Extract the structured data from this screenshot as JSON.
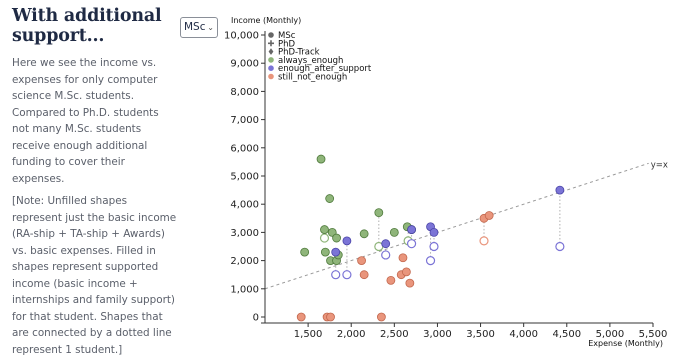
{
  "sidebar": {
    "heading": "With additional support...",
    "paragraph1": "Here we see the income vs. expenses for only computer science M.Sc. students. Compared to Ph.D. students not many M.Sc. students receive enough additional funding to cover their expenses.",
    "paragraph2": "[Note: Unfilled shapes represent just the basic income (RA-ship + TA-ship + Awards) vs. basic expenses. Filled in shapes represent supported income (basic income + internships and family support) for that student. Shapes that are connected by a dotted line represent 1 student.]"
  },
  "filter": {
    "selected": "MSc",
    "icon": "chevron-down-icon"
  },
  "chart_data": {
    "type": "scatter",
    "xlabel": "Expense (Monthly)",
    "ylabel": "Income (Monthly)",
    "xlim": [
      1000,
      5500
    ],
    "ylim": [
      0,
      10000
    ],
    "x_ticks": [
      1500,
      2000,
      2500,
      3000,
      3500,
      4000,
      4500,
      5000,
      5500
    ],
    "y_ticks": [
      0,
      1000,
      2000,
      3000,
      4000,
      5000,
      6000,
      7000,
      8000,
      9000,
      10000
    ],
    "x_tick_labels": [
      "1,500",
      "2,000",
      "2,500",
      "3,000",
      "3,500",
      "4,000",
      "4,500",
      "5,000",
      "5,500"
    ],
    "y_tick_labels": [
      "0",
      "1,000",
      "2,000",
      "3,000",
      "4,000",
      "5,000",
      "6,000",
      "7,000",
      "8,000",
      "9,000",
      "10,000"
    ],
    "reference_line": {
      "label": "y=x"
    },
    "legend": {
      "placement": "top-left",
      "shapes": [
        {
          "label": "MSc",
          "icon": "circle-icon"
        },
        {
          "label": "PhD",
          "icon": "plus-icon"
        },
        {
          "label": "PhD-Track",
          "icon": "diamond-icon"
        }
      ],
      "categories": [
        {
          "label": "always_enough",
          "color": "#8fb57a"
        },
        {
          "label": "enough_after_support",
          "color": "#7b74d6"
        },
        {
          "label": "still_not_enough",
          "color": "#e9957c"
        }
      ]
    },
    "colors": {
      "always_enough": "#8fb57a",
      "enough_after_support": "#7b74d6",
      "still_not_enough": "#e9957c",
      "grid": "#e6e6e6",
      "axis": "#333333",
      "connector": "#b0b0b0"
    },
    "points": [
      {
        "category": "always_enough",
        "x": 1650,
        "y": 5600
      },
      {
        "category": "always_enough",
        "x": 1750,
        "y": 4200
      },
      {
        "category": "always_enough",
        "x": 1690,
        "y": 3100
      },
      {
        "category": "always_enough",
        "x": 1780,
        "y": 3000
      },
      {
        "category": "always_enough",
        "x": 1830,
        "y": 2800
      },
      {
        "category": "always_enough",
        "x": 1460,
        "y": 2300
      },
      {
        "category": "always_enough",
        "x": 1700,
        "y": 2300
      },
      {
        "category": "always_enough",
        "x": 1760,
        "y": 2000
      },
      {
        "category": "always_enough",
        "x": 1830,
        "y": 2000
      },
      {
        "category": "always_enough",
        "x": 1850,
        "y": 2200
      },
      {
        "category": "always_enough",
        "x": 2150,
        "y": 2950
      },
      {
        "category": "always_enough",
        "x": 2320,
        "y": 3700
      },
      {
        "category": "always_enough",
        "x": 2500,
        "y": 3000
      },
      {
        "category": "always_enough",
        "x": 2650,
        "y": 3200
      },
      {
        "category": "always_enough",
        "x": 2700,
        "y": 3100
      },
      {
        "category": "enough_after_support",
        "x": 1950,
        "y": 2700
      },
      {
        "category": "enough_after_support",
        "x": 1820,
        "y": 2300
      },
      {
        "category": "enough_after_support",
        "x": 2400,
        "y": 2600
      },
      {
        "category": "enough_after_support",
        "x": 2700,
        "y": 3100
      },
      {
        "category": "enough_after_support",
        "x": 2920,
        "y": 3200
      },
      {
        "category": "enough_after_support",
        "x": 2960,
        "y": 3000
      },
      {
        "category": "enough_after_support",
        "x": 4420,
        "y": 4500
      },
      {
        "category": "still_not_enough",
        "x": 1420,
        "y": 0
      },
      {
        "category": "still_not_enough",
        "x": 1720,
        "y": 0
      },
      {
        "category": "still_not_enough",
        "x": 1760,
        "y": 0
      },
      {
        "category": "still_not_enough",
        "x": 2350,
        "y": 0
      },
      {
        "category": "still_not_enough",
        "x": 2120,
        "y": 2000
      },
      {
        "category": "still_not_enough",
        "x": 2150,
        "y": 1500
      },
      {
        "category": "still_not_enough",
        "x": 2460,
        "y": 1300
      },
      {
        "category": "still_not_enough",
        "x": 2580,
        "y": 1500
      },
      {
        "category": "still_not_enough",
        "x": 2640,
        "y": 1600
      },
      {
        "category": "still_not_enough",
        "x": 2600,
        "y": 2100
      },
      {
        "category": "still_not_enough",
        "x": 2680,
        "y": 1200
      },
      {
        "category": "still_not_enough",
        "x": 3540,
        "y": 3500
      },
      {
        "category": "still_not_enough",
        "x": 3600,
        "y": 3600
      }
    ],
    "open_points": [
      {
        "category": "always_enough",
        "x": 1690,
        "y": 2800
      },
      {
        "category": "always_enough",
        "x": 2320,
        "y": 2500
      },
      {
        "category": "always_enough",
        "x": 2660,
        "y": 2700
      },
      {
        "category": "enough_after_support",
        "x": 1820,
        "y": 1500
      },
      {
        "category": "enough_after_support",
        "x": 1950,
        "y": 1500
      },
      {
        "category": "enough_after_support",
        "x": 2400,
        "y": 2200
      },
      {
        "category": "enough_after_support",
        "x": 2700,
        "y": 2600
      },
      {
        "category": "enough_after_support",
        "x": 2920,
        "y": 2000
      },
      {
        "category": "enough_after_support",
        "x": 2960,
        "y": 2500
      },
      {
        "category": "enough_after_support",
        "x": 4420,
        "y": 2500
      },
      {
        "category": "still_not_enough",
        "x": 3540,
        "y": 2700
      }
    ],
    "connectors": [
      {
        "x": 1690,
        "y1": 2800,
        "y2": 3100
      },
      {
        "x": 2320,
        "y1": 2500,
        "y2": 3700
      },
      {
        "x": 2660,
        "y1": 2700,
        "y2": 3200
      },
      {
        "x": 1820,
        "y1": 1500,
        "y2": 2300
      },
      {
        "x": 1950,
        "y1": 1500,
        "y2": 2700
      },
      {
        "x": 2400,
        "y1": 2200,
        "y2": 2600
      },
      {
        "x": 2700,
        "y1": 2600,
        "y2": 3100
      },
      {
        "x": 2920,
        "y1": 2000,
        "y2": 3200
      },
      {
        "x": 2960,
        "y1": 2500,
        "y2": 3000
      },
      {
        "x": 4420,
        "y1": 2500,
        "y2": 4500
      },
      {
        "x": 3540,
        "y1": 2700,
        "y2": 3500
      }
    ]
  }
}
